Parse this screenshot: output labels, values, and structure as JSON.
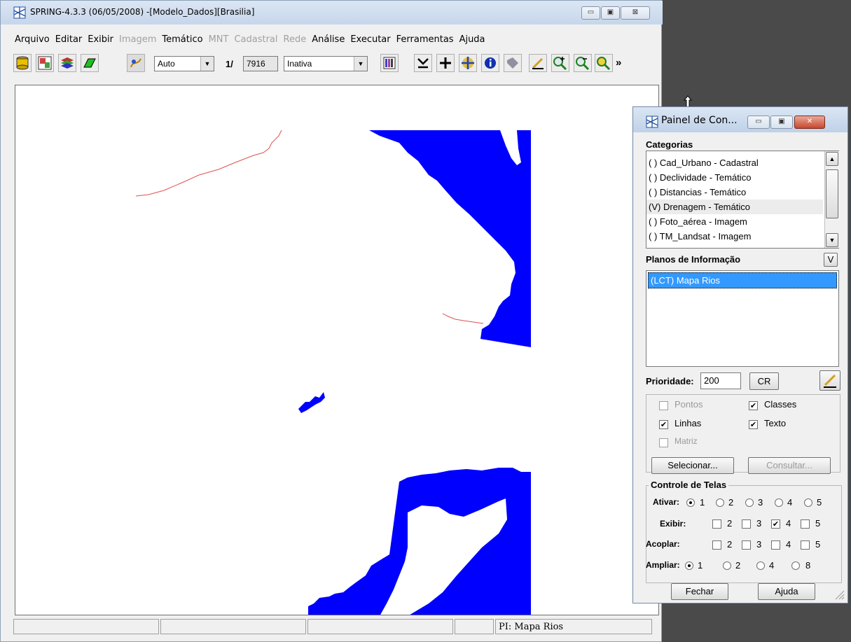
{
  "main_window": {
    "title": "SPRING-4.3.3 (06/05/2008) -[Modelo_Dados][Brasilia]",
    "minimize": "▭",
    "maximize": "▣",
    "close": "⊠"
  },
  "menu": [
    "Arquivo",
    "Editar",
    "Exibir",
    "Imagem",
    "Temático",
    "MNT",
    "Cadastral",
    "Rede",
    "Análise",
    "Executar",
    "Ferramentas",
    "Ajuda"
  ],
  "menu_disabled": [
    "Imagem",
    "MNT",
    "Cadastral",
    "Rede"
  ],
  "toolbar": {
    "zoom_mode": "Auto",
    "scale_prefix": "1/",
    "scale_value": "7916",
    "mode_value": "Inativa",
    "more": "»"
  },
  "status": {
    "p1": "",
    "p2": "",
    "p3": "",
    "p4": "",
    "pi": "PI: Mapa Rios"
  },
  "colors": {
    "river_fill": "#0000ff",
    "line": "#e05050",
    "selection": "#3399ff"
  },
  "panel": {
    "title": "Painel de Con...",
    "categorias_label": "Categorias",
    "categorias": [
      "( ) Cad_Urbano - Cadastral",
      "( ) Declividade - Temático",
      "( ) Distancias - Temático",
      "(V) Drenagem - Temático",
      "( ) Foto_aérea - Imagem",
      "( ) TM_Landsat - Imagem"
    ],
    "planos_label": "Planos de Informação",
    "planos_v_button": "V",
    "planos": [
      "(LCT) Mapa Rios"
    ],
    "prioridade_label": "Prioridade:",
    "prioridade_value": "200",
    "cr_button": "CR",
    "checks": {
      "pontos": "Pontos",
      "classes": "Classes",
      "linhas": "Linhas",
      "texto": "Texto",
      "matriz": "Matriz"
    },
    "selecionar_button": "Selecionar...",
    "consultar_button": "Consultar...",
    "controle_label": "Controle de Telas",
    "ativar_label": "Ativar:",
    "exibir_label": "Exibir:",
    "acoplar_label": "Acoplar:",
    "ampliar_label": "Ampliar:",
    "n1": "1",
    "n2": "2",
    "n3": "3",
    "n4": "4",
    "n5": "5",
    "n8": "8",
    "fechar_button": "Fechar",
    "ajuda_button": "Ajuda",
    "check_mark": "✔"
  }
}
